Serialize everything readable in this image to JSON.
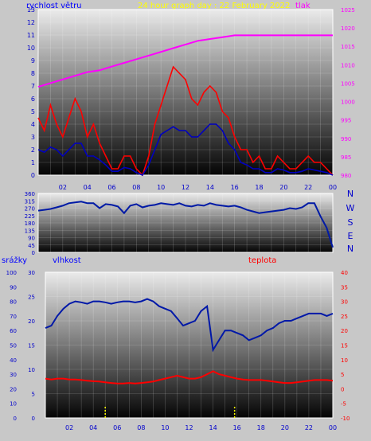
{
  "header": {
    "wind_label": "rychlost větru",
    "title": "24 hour graph day : 22 February 2022",
    "pressure_label": "tlak"
  },
  "compass": [
    "N",
    "W",
    "S",
    "E",
    "N"
  ],
  "lower_labels": {
    "rain": "srážky",
    "humidity": "vlhkost",
    "temperature": "teplota"
  },
  "colors": {
    "wind_speed": "#ff0000",
    "wind_avg": "#0000c0",
    "pressure": "#ff00ff",
    "direction": "#001aa6",
    "humidity": "#0018a8",
    "temperature": "#ff0000",
    "rain": "#ffff00",
    "axis_left": "#0000cc",
    "axis_right": "#ff00ff",
    "title": "#ffff00"
  },
  "chart_data": [
    {
      "type": "line",
      "id": "wind-pressure",
      "x_ticks": [
        "02",
        "04",
        "06",
        "08",
        "10",
        "12",
        "14",
        "16",
        "18",
        "20",
        "22",
        "00"
      ],
      "y_left": {
        "label": "rychlost větru",
        "ylim": [
          0,
          13
        ],
        "ticks": [
          0,
          1,
          2,
          3,
          4,
          5,
          6,
          7,
          8,
          9,
          10,
          11,
          12,
          13
        ]
      },
      "y_right": {
        "label": "tlak",
        "ylim": [
          980,
          1025
        ],
        "ticks": [
          980,
          985,
          990,
          995,
          1000,
          1005,
          1010,
          1015,
          1020,
          1025
        ]
      },
      "series": [
        {
          "name": "rychlost větru",
          "axis": "left",
          "x": [
            0,
            0.5,
            1,
            1.5,
            2,
            2.5,
            3,
            3.5,
            4,
            4.5,
            5,
            5.5,
            6,
            6.5,
            7,
            7.5,
            8,
            8.5,
            9,
            9.5,
            10,
            10.5,
            11,
            11.5,
            12,
            12.5,
            13,
            13.5,
            14,
            14.5,
            15,
            15.5,
            16,
            16.5,
            17,
            17.5,
            18,
            18.5,
            19,
            19.5,
            20,
            20.5,
            21,
            21.5,
            22,
            22.5,
            23,
            23.5,
            24
          ],
          "values": [
            4.5,
            3.5,
            5.5,
            4,
            3,
            4.5,
            6,
            5,
            3,
            4,
            2.5,
            1.5,
            0.5,
            0.5,
            1.5,
            1.5,
            0.5,
            0,
            1.5,
            4,
            5.5,
            7,
            8.5,
            8,
            7.5,
            6,
            5.5,
            6.5,
            7,
            6.5,
            5,
            4.5,
            3,
            2,
            2,
            1,
            1.5,
            0.5,
            0.5,
            1.5,
            1,
            0.5,
            0.5,
            1,
            1.5,
            1,
            1,
            0.5,
            0
          ]
        },
        {
          "name": "",
          "axis": "left",
          "x": [
            0,
            0.5,
            1,
            1.5,
            2,
            2.5,
            3,
            3.5,
            4,
            4.5,
            5,
            5.5,
            6,
            6.5,
            7,
            7.5,
            8,
            8.5,
            9,
            9.5,
            10,
            10.5,
            11,
            11.5,
            12,
            12.5,
            13,
            13.5,
            14,
            14.5,
            15,
            15.5,
            16,
            16.5,
            17,
            17.5,
            18,
            18.5,
            19,
            19.5,
            20,
            20.5,
            21,
            21.5,
            22,
            22.5,
            23,
            23.5,
            24
          ],
          "values": [
            2,
            1.8,
            2.2,
            2,
            1.5,
            2,
            2.5,
            2.5,
            1.5,
            1.5,
            1.2,
            0.8,
            0.3,
            0.3,
            0.6,
            0.5,
            0.2,
            0,
            0.8,
            2,
            3.2,
            3.5,
            3.8,
            3.5,
            3.5,
            3,
            3,
            3.5,
            4,
            4,
            3.5,
            2.5,
            2,
            1,
            0.8,
            0.5,
            0.5,
            0.2,
            0.2,
            0.5,
            0.4,
            0.2,
            0.2,
            0.3,
            0.5,
            0.4,
            0.3,
            0.2,
            0
          ]
        },
        {
          "name": "tlak",
          "axis": "right",
          "x": [
            0,
            1,
            2,
            3,
            4,
            5,
            6,
            7,
            8,
            9,
            10,
            11,
            12,
            13,
            14,
            15,
            16,
            17,
            18,
            19,
            20,
            21,
            22,
            23,
            24
          ],
          "values": [
            1004,
            1005,
            1006,
            1007,
            1008,
            1008.5,
            1009.5,
            1010.5,
            1011.5,
            1012.5,
            1013.5,
            1014.5,
            1015.5,
            1016.5,
            1017,
            1017.5,
            1018,
            1018,
            1018,
            1018,
            1018,
            1018,
            1018,
            1018,
            1018
          ]
        }
      ]
    },
    {
      "type": "line",
      "id": "wind-direction",
      "x_ticks": [
        "02",
        "04",
        "06",
        "08",
        "10",
        "12",
        "14",
        "16",
        "18",
        "20",
        "22",
        "00"
      ],
      "y": {
        "ylim": [
          0,
          360
        ],
        "ticks": [
          0,
          45,
          90,
          135,
          180,
          225,
          270,
          315,
          360
        ]
      },
      "series": [
        {
          "name": "",
          "x": [
            0,
            0.5,
            1,
            1.5,
            2,
            2.5,
            3,
            3.5,
            4,
            4.5,
            5,
            5.5,
            6,
            6.5,
            7,
            7.5,
            8,
            8.5,
            9,
            9.5,
            10,
            10.5,
            11,
            11.5,
            12,
            12.5,
            13,
            13.5,
            14,
            14.5,
            15,
            15.5,
            16,
            16.5,
            17,
            17.5,
            18,
            18.5,
            19,
            19.5,
            20,
            20.5,
            21,
            21.5,
            22,
            22.5,
            23,
            23.5,
            24
          ],
          "values": [
            255,
            260,
            265,
            275,
            285,
            300,
            305,
            310,
            300,
            300,
            270,
            295,
            290,
            280,
            240,
            285,
            295,
            275,
            285,
            290,
            300,
            295,
            290,
            300,
            285,
            280,
            290,
            285,
            300,
            290,
            285,
            280,
            285,
            275,
            260,
            250,
            240,
            245,
            250,
            255,
            260,
            270,
            265,
            275,
            300,
            300,
            220,
            150,
            30
          ]
        }
      ]
    },
    {
      "type": "line",
      "id": "humidity-temperature-rain",
      "x_ticks": [
        "02",
        "04",
        "06",
        "08",
        "10",
        "12",
        "14",
        "16",
        "18",
        "20",
        "22",
        "00"
      ],
      "y_rain": {
        "label": "srážky",
        "ylim": [
          0,
          100
        ],
        "ticks": [
          0,
          10,
          20,
          30,
          40,
          50,
          60,
          70,
          80,
          90,
          100
        ]
      },
      "y_humidity": {
        "label": "vlhkost",
        "ylim": [
          0,
          30
        ],
        "ticks": [
          0,
          5,
          10,
          15,
          20,
          25,
          30
        ]
      },
      "y_temperature": {
        "label": "teplota",
        "ylim": [
          -10,
          40
        ],
        "ticks": [
          -10,
          -5,
          0,
          5,
          10,
          15,
          20,
          25,
          30,
          35,
          40
        ]
      },
      "series": [
        {
          "name": "vlhkost",
          "axis": "humidity",
          "x": [
            0,
            0.5,
            1,
            1.5,
            2,
            2.5,
            3,
            3.5,
            4,
            4.5,
            5,
            5.5,
            6,
            6.5,
            7,
            7.5,
            8,
            8.5,
            9,
            9.5,
            10,
            10.5,
            11,
            11.5,
            12,
            12.5,
            13,
            13.5,
            14,
            14.5,
            15,
            15.5,
            16,
            16.5,
            17,
            17.5,
            18,
            18.5,
            19,
            19.5,
            20,
            20.5,
            21,
            21.5,
            22,
            22.5,
            23,
            23.5,
            24
          ],
          "values": [
            18.5,
            19,
            21,
            22.5,
            23.5,
            24,
            23.8,
            23.5,
            24,
            24,
            23.8,
            23.5,
            23.8,
            24,
            24,
            23.8,
            24,
            24.5,
            24,
            23,
            22.5,
            22,
            20.5,
            19,
            19.5,
            20,
            22,
            23,
            14,
            16,
            18,
            18,
            17.5,
            17,
            16,
            16.5,
            17,
            18,
            18.5,
            19.5,
            20,
            20,
            20.5,
            21,
            21.5,
            21.5,
            21.5,
            21,
            21.5
          ]
        },
        {
          "name": "teplota",
          "axis": "temperature",
          "x": [
            0,
            0.5,
            1,
            1.5,
            2,
            2.5,
            3,
            3.5,
            4,
            4.5,
            5,
            5.5,
            6,
            6.5,
            7,
            7.5,
            8,
            8.5,
            9,
            9.5,
            10,
            10.5,
            11,
            11.5,
            12,
            12.5,
            13,
            13.5,
            14,
            14.5,
            15,
            15.5,
            16,
            16.5,
            17,
            17.5,
            18,
            18.5,
            19,
            19.5,
            20,
            20.5,
            21,
            21.5,
            22,
            22.5,
            23,
            23.5,
            24
          ],
          "values": [
            3.5,
            3.2,
            3.5,
            3.5,
            3.2,
            3.2,
            3,
            2.8,
            2.6,
            2.5,
            2.2,
            2,
            1.8,
            1.8,
            2,
            1.8,
            2,
            2.2,
            2.5,
            3,
            3.5,
            4,
            4.5,
            4,
            3.5,
            3.5,
            4,
            5,
            6,
            5,
            4.5,
            4,
            3.5,
            3.2,
            3,
            3,
            3,
            2.8,
            2.5,
            2.2,
            2,
            2,
            2.2,
            2.5,
            2.8,
            3,
            3,
            3,
            2.8
          ]
        },
        {
          "name": "srážky",
          "axis": "rain",
          "x": [
            5,
            15.8
          ],
          "values": [
            8,
            8
          ]
        }
      ]
    }
  ]
}
